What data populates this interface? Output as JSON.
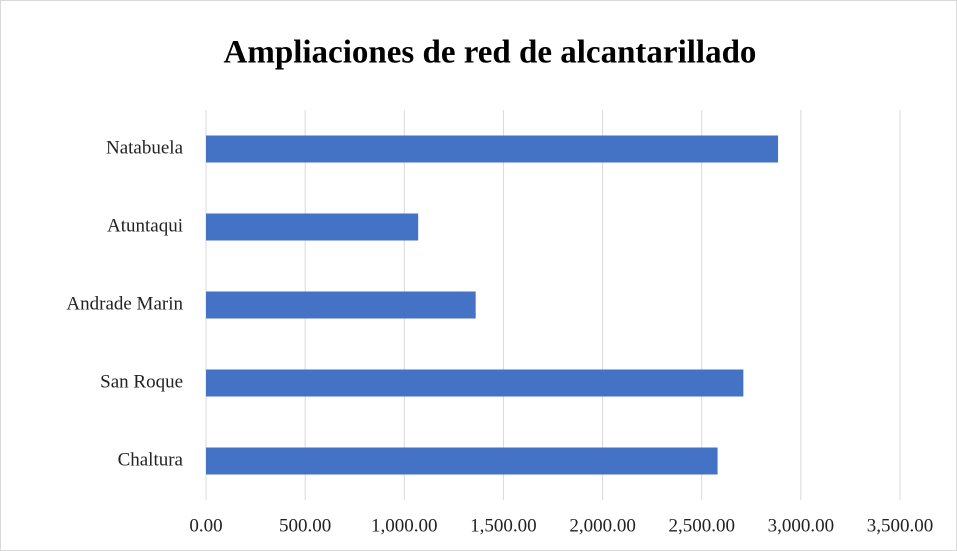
{
  "chart_data": {
    "type": "bar",
    "orientation": "horizontal",
    "title": "Ampliaciones de red de alcantarillado",
    "categories": [
      "Natabuela",
      "Atuntaqui",
      "Andrade Marin",
      "San Roque",
      "Chaltura"
    ],
    "values": [
      2885,
      1070,
      1360,
      2710,
      2580
    ],
    "color": "#4472c4",
    "xlim": [
      0,
      3500
    ],
    "xticks": [
      {
        "value": 0,
        "label": "0.00"
      },
      {
        "value": 500,
        "label": "500.00"
      },
      {
        "value": 1000,
        "label": "1,000.00"
      },
      {
        "value": 1500,
        "label": "1,500.00"
      },
      {
        "value": 2000,
        "label": "2,000.00"
      },
      {
        "value": 2500,
        "label": "2,500.00"
      },
      {
        "value": 3000,
        "label": "3,000.00"
      },
      {
        "value": 3500,
        "label": "3,500.00"
      }
    ],
    "grid": true
  }
}
